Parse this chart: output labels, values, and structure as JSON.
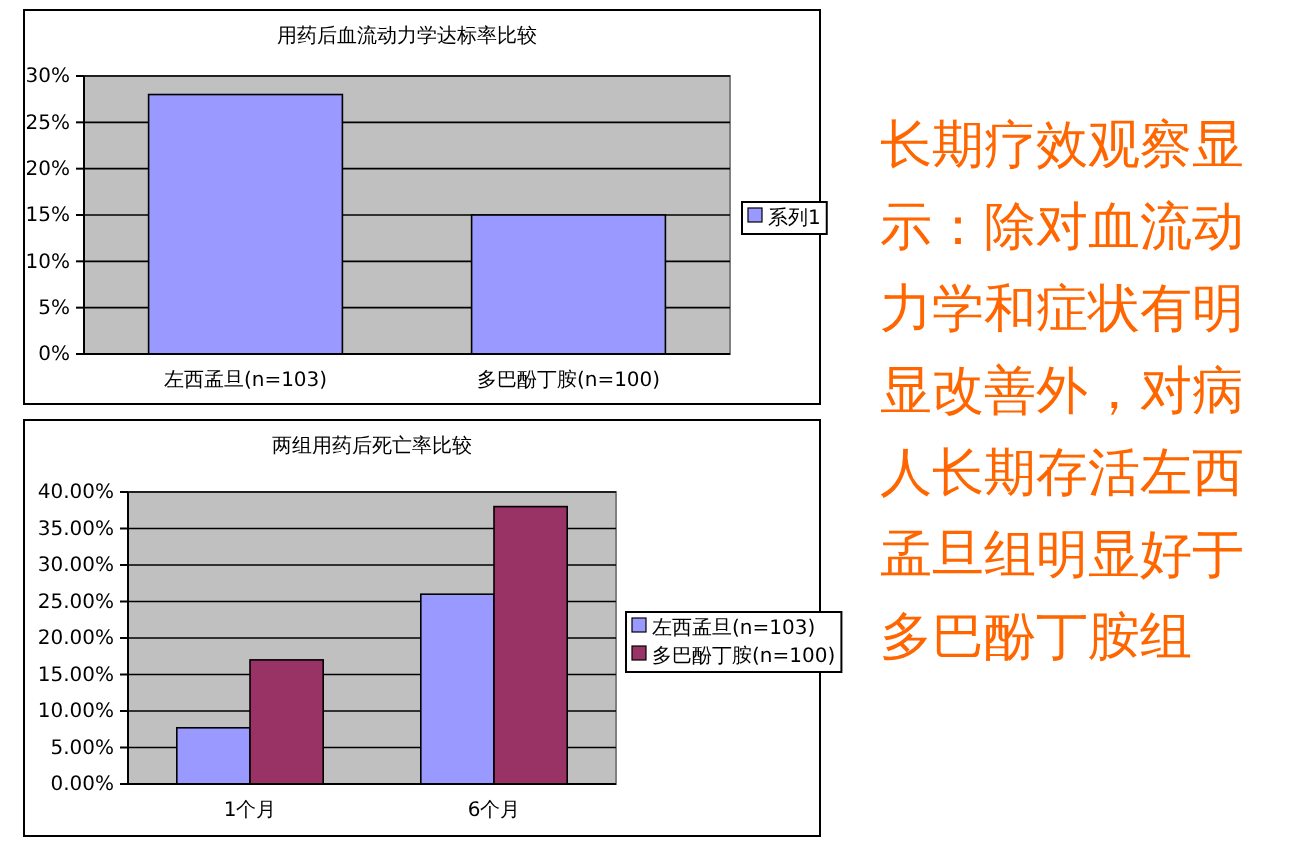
{
  "chart_data": [
    {
      "type": "bar",
      "title": "用药后血流动力学达标率比较",
      "categories": [
        "左西孟旦(n=103)",
        "多巴酚丁胺(n=100)"
      ],
      "series": [
        {
          "name": "系列1",
          "color": "#9999ff",
          "values": [
            28,
            15
          ]
        }
      ],
      "ylim": [
        0,
        30
      ],
      "yticks": [
        {
          "value": 0,
          "label": "0%"
        },
        {
          "value": 5,
          "label": "5%"
        },
        {
          "value": 10,
          "label": "10%"
        },
        {
          "value": 15,
          "label": "15%"
        },
        {
          "value": 20,
          "label": "20%"
        },
        {
          "value": 25,
          "label": "25%"
        },
        {
          "value": 30,
          "label": "30%"
        }
      ],
      "grid": "y",
      "legend": "right"
    },
    {
      "type": "bar",
      "title": "两组用药后死亡率比较",
      "categories": [
        "1个月",
        "6个月"
      ],
      "series": [
        {
          "name": "左西孟旦(n=103)",
          "color": "#9999ff",
          "values": [
            7.7,
            26
          ]
        },
        {
          "name": "多巴酚丁胺(n=100)",
          "color": "#993366",
          "values": [
            17,
            38
          ]
        }
      ],
      "ylim": [
        0,
        40
      ],
      "yticks": [
        {
          "value": 0,
          "label": "0.00%"
        },
        {
          "value": 5,
          "label": "5.00%"
        },
        {
          "value": 10,
          "label": "10.00%"
        },
        {
          "value": 15,
          "label": "15.00%"
        },
        {
          "value": 20,
          "label": "20.00%"
        },
        {
          "value": 25,
          "label": "25.00%"
        },
        {
          "value": 30,
          "label": "30.00%"
        },
        {
          "value": 35,
          "label": "35.00%"
        },
        {
          "value": 40,
          "label": "40.00%"
        }
      ],
      "grid": "y",
      "legend": "right"
    },
    {
      "type": "other",
      "annotations": [
        "长期疗效观察显示：除对血流动力学和症状有明显改善外，对病人长期存活左西孟旦组明显好于多巴酚丁胺组"
      ]
    }
  ]
}
